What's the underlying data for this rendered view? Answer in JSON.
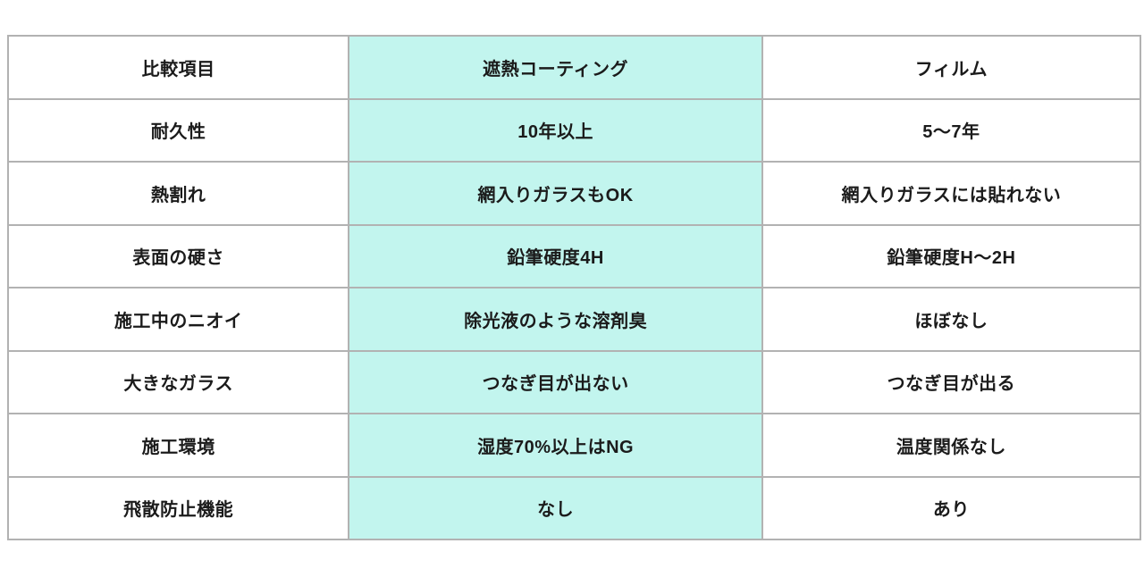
{
  "chart_data": {
    "type": "table",
    "title": "",
    "columns": [
      "比較項目",
      "遮熱コーティング",
      "フィルム"
    ],
    "rows": [
      [
        "耐久性",
        "10年以上",
        "5〜7年"
      ],
      [
        "熱割れ",
        "網入りガラスもOK",
        "網入りガラスには貼れない"
      ],
      [
        "表面の硬さ",
        "鉛筆硬度4H",
        "鉛筆硬度H〜2H"
      ],
      [
        "施工中のニオイ",
        "除光液のような溶剤臭",
        "ほぼなし"
      ],
      [
        "大きなガラス",
        "つなぎ目が出ない",
        "つなぎ目が出る"
      ],
      [
        "施工環境",
        "湿度70%以上はNG",
        "温度関係なし"
      ],
      [
        "飛散防止機能",
        "なし",
        "あり"
      ]
    ],
    "highlighted_column_index": 1,
    "layout": {
      "grid": "on",
      "legend_position": "none"
    }
  },
  "colors": {
    "highlight_bg": "#c2f5ee",
    "border": "#b2b2b2",
    "text": "#1b1b1b",
    "page_bg": "#ffffff"
  }
}
